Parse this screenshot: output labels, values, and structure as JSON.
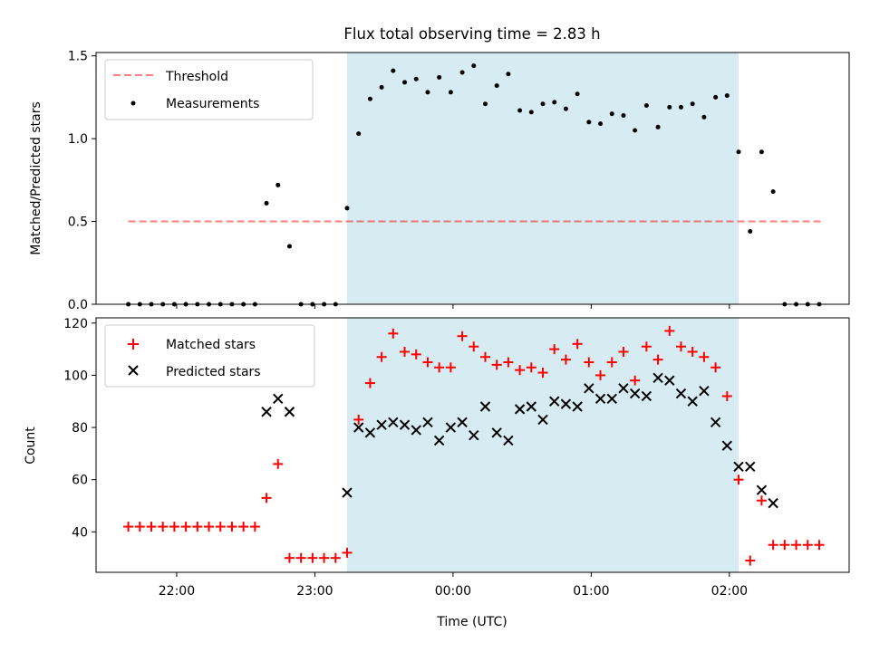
{
  "title": "Flux total observing time = 2.83 h",
  "xlabel": "Time (UTC)",
  "x_ticks": [
    "22:00",
    "23:00",
    "00:00",
    "01:00",
    "02:00"
  ],
  "colors": {
    "shade": "#add8e6",
    "threshold": "#ff0000",
    "measurements": "#000000",
    "matched": "#ff0000",
    "predicted": "#000000"
  },
  "chart_data": [
    {
      "type": "scatter",
      "ylabel": "Matched/Predicted stars",
      "ylim": [
        0,
        1.52
      ],
      "y_ticks": [
        "0.0",
        "0.5",
        "1.0",
        "1.5"
      ],
      "legend": {
        "position": "top-left",
        "entries": [
          "Threshold",
          "Measurements"
        ]
      },
      "shaded_interval": {
        "start": "23:14",
        "end": "02:04"
      },
      "threshold": {
        "name": "Threshold",
        "y": 0.5,
        "x_start": "21:39",
        "x_end": "02:41"
      },
      "series": [
        {
          "name": "Measurements",
          "marker": "dot",
          "x": [
            "21:39",
            "21:44",
            "21:49",
            "21:54",
            "21:59",
            "22:04",
            "22:09",
            "22:14",
            "22:19",
            "22:24",
            "22:29",
            "22:34",
            "22:39",
            "22:44",
            "22:49",
            "22:54",
            "22:59",
            "23:04",
            "23:09",
            "23:14",
            "23:19",
            "23:24",
            "23:29",
            "23:34",
            "23:39",
            "23:44",
            "23:49",
            "23:54",
            "23:59",
            "00:04",
            "00:09",
            "00:14",
            "00:19",
            "00:24",
            "00:29",
            "00:34",
            "00:39",
            "00:44",
            "00:49",
            "00:54",
            "00:59",
            "01:04",
            "01:09",
            "01:14",
            "01:19",
            "01:24",
            "01:29",
            "01:34",
            "01:39",
            "01:44",
            "01:49",
            "01:54",
            "01:59",
            "02:04",
            "02:09",
            "02:14",
            "02:19",
            "02:24",
            "02:29",
            "02:34",
            "02:39"
          ],
          "y": [
            0,
            0,
            0,
            0,
            0,
            0,
            0,
            0,
            0,
            0,
            0,
            0,
            0.61,
            0.72,
            0.35,
            0,
            0,
            0,
            0,
            0.58,
            1.03,
            1.24,
            1.31,
            1.41,
            1.34,
            1.36,
            1.28,
            1.37,
            1.28,
            1.4,
            1.44,
            1.21,
            1.32,
            1.39,
            1.17,
            1.16,
            1.21,
            1.22,
            1.18,
            1.27,
            1.1,
            1.09,
            1.15,
            1.14,
            1.05,
            1.2,
            1.07,
            1.19,
            1.19,
            1.21,
            1.13,
            1.25,
            1.26,
            0.92,
            0.44,
            0.92,
            0.68,
            0,
            0,
            0,
            0
          ]
        }
      ]
    },
    {
      "type": "scatter",
      "ylabel": "Count",
      "ylim": [
        24.5,
        122
      ],
      "y_ticks": [
        "40",
        "60",
        "80",
        "100",
        "120"
      ],
      "legend": {
        "position": "top-left",
        "entries": [
          "Matched stars",
          "Predicted stars"
        ]
      },
      "shaded_interval": {
        "start": "23:14",
        "end": "02:04"
      },
      "series": [
        {
          "name": "Matched stars",
          "marker": "plus",
          "x": [
            "21:39",
            "21:44",
            "21:49",
            "21:54",
            "21:59",
            "22:04",
            "22:09",
            "22:14",
            "22:19",
            "22:24",
            "22:29",
            "22:34",
            "22:39",
            "22:44",
            "22:49",
            "22:54",
            "22:59",
            "23:04",
            "23:09",
            "23:14",
            "23:19",
            "23:24",
            "23:29",
            "23:34",
            "23:39",
            "23:44",
            "23:49",
            "23:54",
            "23:59",
            "00:04",
            "00:09",
            "00:14",
            "00:19",
            "00:24",
            "00:29",
            "00:34",
            "00:39",
            "00:44",
            "00:49",
            "00:54",
            "00:59",
            "01:04",
            "01:09",
            "01:14",
            "01:19",
            "01:24",
            "01:29",
            "01:34",
            "01:39",
            "01:44",
            "01:49",
            "01:54",
            "01:59",
            "02:04",
            "02:09",
            "02:14",
            "02:19",
            "02:24",
            "02:29",
            "02:34",
            "02:39"
          ],
          "y": [
            42,
            42,
            42,
            42,
            42,
            42,
            42,
            42,
            42,
            42,
            42,
            42,
            53,
            66,
            30,
            30,
            30,
            30,
            30,
            32,
            83,
            97,
            107,
            116,
            109,
            108,
            105,
            103,
            103,
            115,
            111,
            107,
            104,
            105,
            102,
            103,
            101,
            110,
            106,
            112,
            105,
            100,
            105,
            109,
            98,
            111,
            106,
            117,
            111,
            109,
            107,
            103,
            92,
            60,
            29,
            52,
            35,
            35,
            35,
            35,
            35
          ]
        },
        {
          "name": "Predicted stars",
          "marker": "x",
          "x": [
            "22:39",
            "22:44",
            "22:49",
            "23:14",
            "23:19",
            "23:24",
            "23:29",
            "23:34",
            "23:39",
            "23:44",
            "23:49",
            "23:54",
            "23:59",
            "00:04",
            "00:09",
            "00:14",
            "00:19",
            "00:24",
            "00:29",
            "00:34",
            "00:39",
            "00:44",
            "00:49",
            "00:54",
            "00:59",
            "01:04",
            "01:09",
            "01:14",
            "01:19",
            "01:24",
            "01:29",
            "01:34",
            "01:39",
            "01:44",
            "01:49",
            "01:54",
            "01:59",
            "02:04",
            "02:09",
            "02:14",
            "02:19"
          ],
          "y": [
            86,
            91,
            86,
            55,
            80,
            78,
            81,
            82,
            81,
            79,
            82,
            75,
            80,
            82,
            77,
            88,
            78,
            75,
            87,
            88,
            83,
            90,
            89,
            88,
            95,
            91,
            91,
            95,
            93,
            92,
            99,
            98,
            93,
            90,
            94,
            82,
            73,
            65,
            65,
            56,
            51
          ]
        }
      ]
    }
  ]
}
